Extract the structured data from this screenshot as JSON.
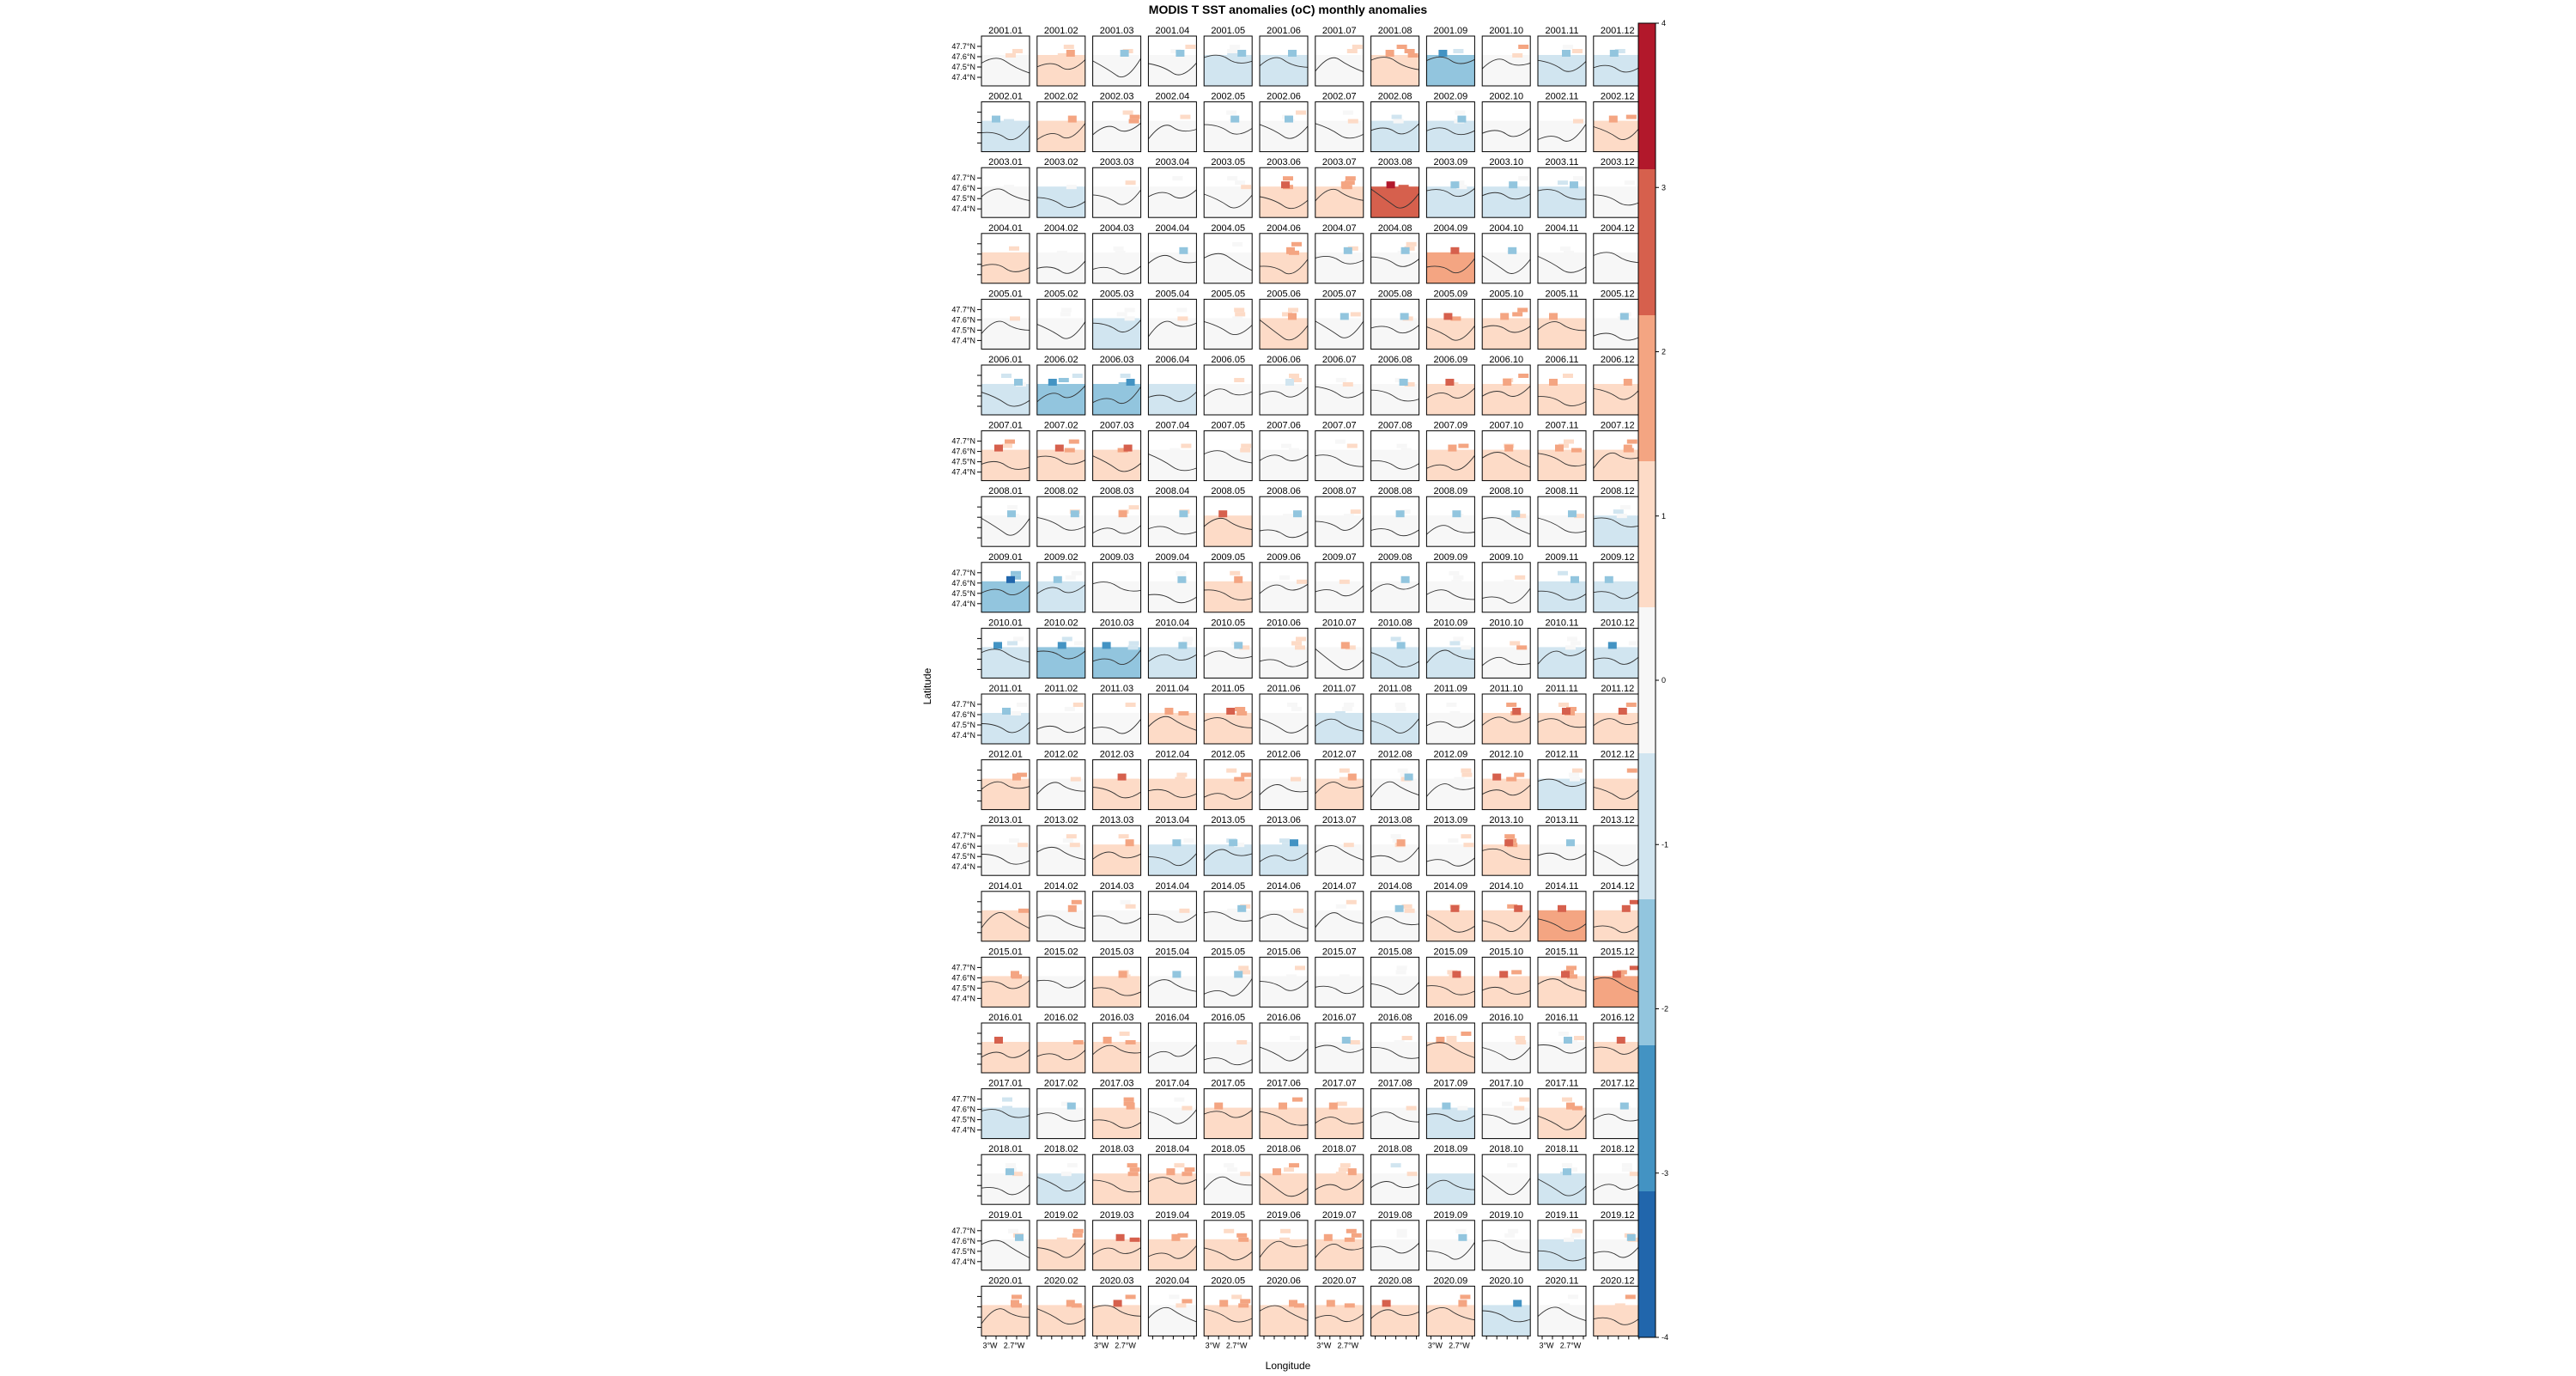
{
  "chart_data": {
    "type": "heatmap",
    "title": "MODIS T SST anomalies (oC) monthly anomalies",
    "xlabel": "Longitude",
    "ylabel": "Latitude",
    "x_tick_labels": [
      "3°W",
      "2.7°W"
    ],
    "y_tick_labels": [
      "47.7°N",
      "47.6°N",
      "47.5°N",
      "47.4°N"
    ],
    "colorbar": {
      "range": [
        -4,
        4
      ],
      "ticks": [
        "4",
        "3",
        "2",
        "1",
        "0",
        "-1",
        "-2",
        "-3",
        "-4"
      ],
      "colors": [
        "#b2182b",
        "#d6604d",
        "#f4a582",
        "#fddbc7",
        "#f7f7f7",
        "#d1e5f0",
        "#92c5de",
        "#4393c3",
        "#2166ac"
      ]
    },
    "panel_layout": {
      "columns": 12,
      "rows": 20
    },
    "years": [
      "2001",
      "2002",
      "2003",
      "2004",
      "2005",
      "2006",
      "2007",
      "2008",
      "2009",
      "2010",
      "2011",
      "2012",
      "2013",
      "2014",
      "2015",
      "2016",
      "2017",
      "2018",
      "2019",
      "2020"
    ],
    "months": [
      "01",
      "02",
      "03",
      "04",
      "05",
      "06",
      "07",
      "08",
      "09",
      "10",
      "11",
      "12"
    ],
    "panel_mean_anomaly_estimate": [
      [
        0.3,
        0.8,
        -0.2,
        -0.3,
        -0.6,
        -0.9,
        -0.3,
        1.0,
        -1.6,
        0.3,
        -0.5,
        -0.9
      ],
      [
        -0.9,
        0.6,
        0.2,
        -0.3,
        -0.3,
        -0.4,
        -0.3,
        -0.5,
        -0.5,
        -0.3,
        -0.4,
        0.9
      ],
      [
        -0.3,
        -0.6,
        0.1,
        -0.4,
        -0.4,
        1.2,
        1.0,
        2.4,
        -0.5,
        -0.8,
        -0.7,
        -0.4
      ],
      [
        0.5,
        0.4,
        -0.2,
        -0.2,
        -0.3,
        0.8,
        -0.3,
        -0.4,
        1.4,
        -0.3,
        -0.2,
        -0.3
      ],
      [
        0.3,
        0.2,
        -0.5,
        -0.2,
        -0.2,
        0.6,
        -0.2,
        -0.3,
        1.3,
        0.8,
        0.9,
        -0.4
      ],
      [
        -0.9,
        -1.8,
        -1.7,
        -0.6,
        -0.2,
        -0.1,
        0.4,
        -0.3,
        1.1,
        1.0,
        1.0,
        0.6
      ],
      [
        1.3,
        1.1,
        1.3,
        -0.3,
        -0.2,
        -0.3,
        -0.3,
        -0.3,
        0.8,
        1.0,
        0.9,
        0.8
      ],
      [
        -0.3,
        -0.4,
        0.2,
        -0.3,
        1.1,
        -0.3,
        -0.3,
        -0.3,
        -0.3,
        -0.3,
        -0.3,
        -0.6
      ],
      [
        -2.2,
        -0.8,
        -0.3,
        -0.3,
        0.6,
        -0.3,
        0.4,
        -0.3,
        -0.3,
        -0.4,
        -0.7,
        -1.0
      ],
      [
        -1.2,
        -1.5,
        -1.6,
        -0.8,
        -0.3,
        -0.2,
        0.3,
        -1.0,
        -0.7,
        0.3,
        -0.7,
        -1.3
      ],
      [
        -0.9,
        -0.2,
        0.2,
        0.9,
        1.1,
        -0.4,
        -0.5,
        -0.6,
        0.2,
        1.2,
        1.2,
        1.2
      ],
      [
        0.6,
        -0.2,
        1.1,
        0.6,
        0.7,
        0.4,
        0.5,
        -0.2,
        -0.2,
        1.1,
        -0.5,
        0.6
      ],
      [
        -0.3,
        0.1,
        0.9,
        -0.7,
        -0.9,
        -1.2,
        0.2,
        0.4,
        -0.3,
        1.3,
        -0.4,
        -0.4
      ],
      [
        0.6,
        0.3,
        -0.3,
        -0.3,
        -0.3,
        -0.2,
        0.4,
        -0.3,
        1.1,
        1.3,
        1.6,
        1.1
      ],
      [
        1.0,
        -0.3,
        0.5,
        -0.3,
        -0.3,
        -0.3,
        -0.3,
        -0.3,
        1.1,
        1.3,
        1.3,
        1.4
      ],
      [
        1.2,
        0.5,
        0.8,
        -0.3,
        -0.3,
        -0.3,
        -0.3,
        -0.3,
        1.0,
        -0.3,
        -0.3,
        1.1
      ],
      [
        -0.5,
        -0.3,
        0.8,
        -0.2,
        0.9,
        0.9,
        0.8,
        -0.3,
        -1.0,
        -0.3,
        0.5,
        -0.3
      ],
      [
        -0.3,
        -0.6,
        0.7,
        0.8,
        -0.3,
        1.0,
        1.0,
        -0.4,
        -0.6,
        -0.3,
        -0.6,
        -0.3
      ],
      [
        -0.3,
        0.7,
        1.1,
        0.8,
        0.7,
        0.7,
        0.9,
        -0.3,
        -0.3,
        -0.2,
        -0.5,
        -0.2
      ],
      [
        0.7,
        0.8,
        1.1,
        0.4,
        0.8,
        0.6,
        1.0,
        1.1,
        0.7,
        -1.2,
        -0.3,
        0.6
      ]
    ]
  }
}
